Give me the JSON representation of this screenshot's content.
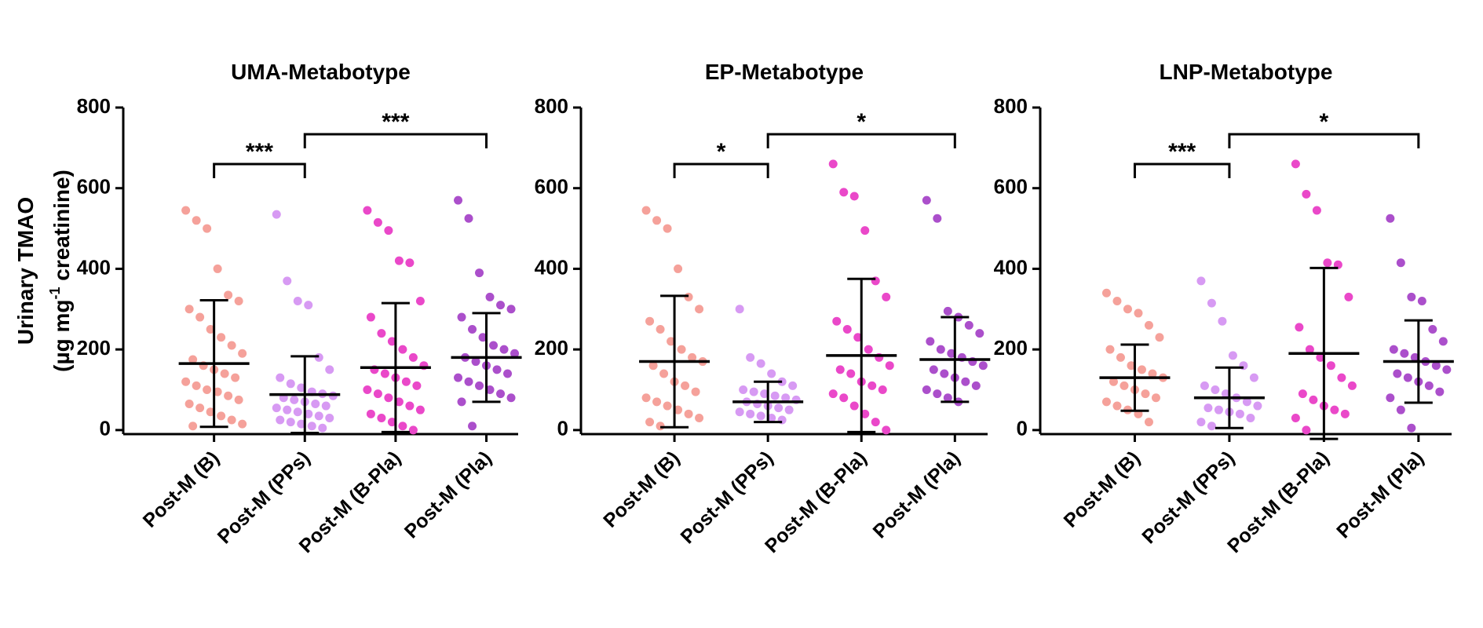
{
  "chart_data": [
    {
      "type": "strip",
      "title": "UMA-Metabotype",
      "ylabel": {
        "line1": "Urinary TMAO",
        "line2_pre": "(µg mg",
        "line2_sup": "-1",
        "line2_post": " creatinine)"
      },
      "categories": [
        "Post-M (B)",
        "Post-M (PPs)",
        "Post-M (B-Pla)",
        "Post-M (Pla)"
      ],
      "colors": [
        "#f5a19a",
        "#d79af3",
        "#ea48c9",
        "#ab4fcb"
      ],
      "values": [
        [
          545,
          520,
          500,
          400,
          335,
          320,
          300,
          280,
          250,
          230,
          210,
          190,
          175,
          160,
          150,
          140,
          130,
          120,
          110,
          100,
          95,
          85,
          75,
          65,
          55,
          45,
          35,
          25,
          15,
          10
        ],
        [
          535,
          370,
          320,
          310,
          180,
          150,
          130,
          115,
          105,
          95,
          90,
          85,
          80,
          75,
          70,
          65,
          60,
          55,
          50,
          45,
          40,
          35,
          30,
          25,
          20,
          15,
          10,
          5
        ],
        [
          545,
          515,
          495,
          420,
          415,
          320,
          280,
          240,
          220,
          200,
          180,
          160,
          150,
          140,
          130,
          120,
          110,
          100,
          90,
          80,
          70,
          60,
          50,
          40,
          30,
          20,
          10,
          0
        ],
        [
          570,
          525,
          390,
          330,
          310,
          300,
          280,
          250,
          230,
          210,
          200,
          190,
          180,
          170,
          160,
          150,
          140,
          130,
          120,
          110,
          100,
          90,
          80,
          70,
          10
        ]
      ],
      "mean": [
        165,
        88,
        155,
        180
      ],
      "sd": [
        157,
        95,
        160,
        110
      ],
      "brackets": [
        {
          "pair": [
            0,
            1
          ],
          "label": "***"
        },
        {
          "pair": [
            1,
            3
          ],
          "label": "***"
        }
      ],
      "ylim": [
        -10,
        800
      ],
      "yticks": [
        0,
        200,
        400,
        600,
        800
      ]
    },
    {
      "type": "strip",
      "title": "EP-Metabotype",
      "categories": [
        "Post-M (B)",
        "Post-M (PPs)",
        "Post-M (B-Pla)",
        "Post-M (Pla)"
      ],
      "colors": [
        "#f5a19a",
        "#d79af3",
        "#ea48c9",
        "#ab4fcb"
      ],
      "values": [
        [
          545,
          520,
          500,
          400,
          330,
          300,
          270,
          250,
          220,
          200,
          180,
          170,
          160,
          140,
          120,
          110,
          95,
          80,
          70,
          60,
          50,
          40,
          30,
          20,
          10
        ],
        [
          300,
          180,
          165,
          140,
          120,
          110,
          100,
          95,
          90,
          85,
          80,
          75,
          70,
          65,
          60,
          55,
          50,
          45,
          40,
          35,
          30,
          25
        ],
        [
          660,
          590,
          580,
          495,
          370,
          330,
          270,
          250,
          230,
          200,
          180,
          160,
          150,
          140,
          120,
          110,
          100,
          90,
          80,
          60,
          40,
          20,
          0
        ],
        [
          570,
          525,
          295,
          280,
          260,
          240,
          220,
          200,
          190,
          180,
          170,
          160,
          150,
          140,
          130,
          120,
          110,
          100,
          90,
          80,
          70
        ]
      ],
      "mean": [
        170,
        70,
        185,
        175
      ],
      "sd": [
        163,
        50,
        190,
        105
      ],
      "brackets": [
        {
          "pair": [
            0,
            1
          ],
          "label": "*"
        },
        {
          "pair": [
            1,
            3
          ],
          "label": "*"
        }
      ],
      "ylim": [
        -10,
        800
      ],
      "yticks": [
        0,
        200,
        400,
        600,
        800
      ]
    },
    {
      "type": "strip",
      "title": "LNP-Metabotype",
      "categories": [
        "Post-M (B)",
        "Post-M (PPs)",
        "Post-M (B-Pla)",
        "Post-M (Pla)"
      ],
      "colors": [
        "#f5a19a",
        "#d79af3",
        "#ea48c9",
        "#ab4fcb"
      ],
      "values": [
        [
          340,
          320,
          300,
          290,
          260,
          230,
          200,
          180,
          160,
          150,
          140,
          130,
          120,
          110,
          100,
          90,
          80,
          70,
          60,
          50,
          40,
          20
        ],
        [
          370,
          315,
          270,
          185,
          160,
          130,
          110,
          100,
          90,
          80,
          70,
          60,
          55,
          50,
          45,
          40,
          30,
          20,
          10
        ],
        [
          660,
          585,
          545,
          415,
          410,
          330,
          255,
          200,
          180,
          160,
          130,
          110,
          90,
          75,
          60,
          50,
          40,
          30,
          0
        ],
        [
          525,
          415,
          330,
          320,
          250,
          220,
          200,
          190,
          180,
          170,
          160,
          150,
          140,
          130,
          120,
          110,
          95,
          80,
          50,
          5
        ]
      ],
      "mean": [
        130,
        80,
        190,
        170
      ],
      "sd": [
        82,
        75,
        212,
        102
      ],
      "brackets": [
        {
          "pair": [
            0,
            1
          ],
          "label": "***"
        },
        {
          "pair": [
            1,
            3
          ],
          "label": "*"
        }
      ],
      "ylim": [
        -10,
        800
      ],
      "yticks": [
        0,
        200,
        400,
        600,
        800
      ]
    }
  ]
}
